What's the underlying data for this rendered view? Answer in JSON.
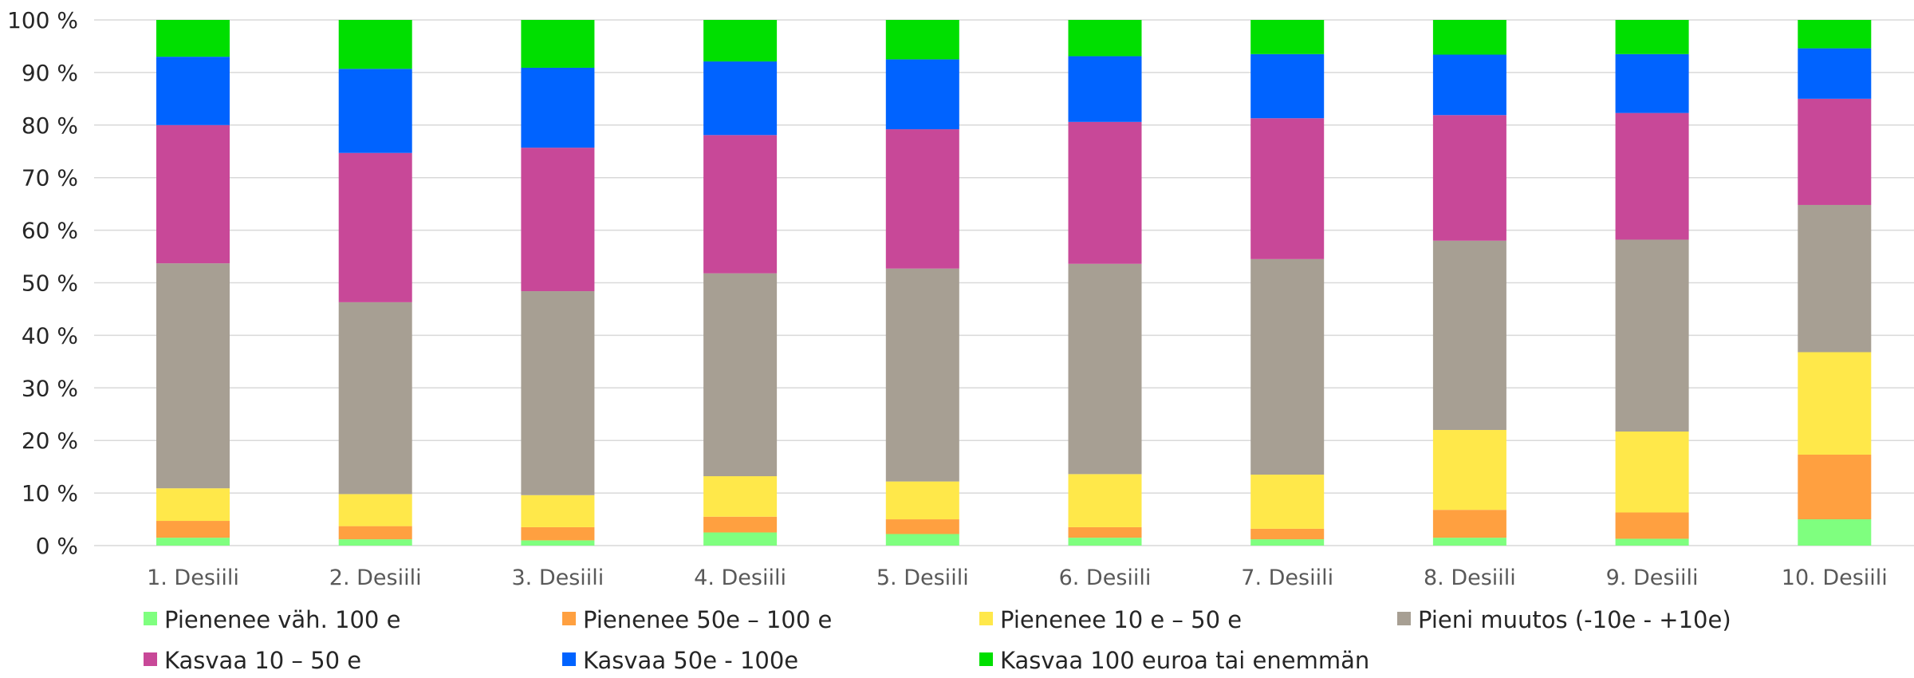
{
  "chart_data": {
    "type": "bar",
    "stacked": true,
    "normalized": true,
    "categories": [
      "1. Desiili",
      "2. Desiili",
      "3. Desiili",
      "4. Desiili",
      "5. Desiili",
      "6. Desiili",
      "7. Desiili",
      "8. Desiili",
      "9. Desiili",
      "10. Desiili"
    ],
    "ylim": [
      0,
      100
    ],
    "yticks": [
      0,
      10,
      20,
      30,
      40,
      50,
      60,
      70,
      80,
      90,
      100
    ],
    "ytick_suffix": " %",
    "grid": true,
    "legend_position": "bottom",
    "series": [
      {
        "name": "Pienenee väh. 100 e",
        "color": "#7fff7f",
        "values": [
          1.5,
          1.2,
          1.0,
          2.5,
          2.2,
          1.5,
          1.2,
          1.5,
          1.3,
          5.0
        ]
      },
      {
        "name": "Pienenee 50e – 100 e",
        "color": "#ffa040",
        "values": [
          3.2,
          2.5,
          2.5,
          3.0,
          2.8,
          2.0,
          2.0,
          5.3,
          5.0,
          12.3
        ]
      },
      {
        "name": "Pienenee 10 e – 50 e",
        "color": "#ffe84a",
        "values": [
          6.2,
          6.1,
          6.1,
          7.7,
          7.2,
          10.1,
          10.3,
          15.2,
          15.4,
          19.5
        ]
      },
      {
        "name": "Pieni muutos (-10e - +10e)",
        "color": "#a79f93",
        "values": [
          42.8,
          36.5,
          38.8,
          38.6,
          40.5,
          40.0,
          41.0,
          36.0,
          36.5,
          28.0
        ]
      },
      {
        "name": "Kasvaa 10 – 50 e",
        "color": "#c84898",
        "values": [
          26.3,
          28.4,
          27.3,
          26.3,
          26.5,
          27.0,
          26.8,
          23.9,
          24.1,
          20.2
        ]
      },
      {
        "name": "Kasvaa 50e - 100e",
        "color": "#0063ff",
        "values": [
          13.0,
          16.0,
          15.2,
          14.0,
          13.3,
          12.5,
          12.2,
          11.5,
          11.2,
          9.6
        ]
      },
      {
        "name": "Kasvaa 100 euroa tai enemmän",
        "color": "#00df00",
        "values": [
          7.0,
          9.3,
          9.1,
          7.9,
          7.5,
          6.9,
          6.5,
          6.6,
          6.5,
          5.4
        ]
      }
    ]
  }
}
